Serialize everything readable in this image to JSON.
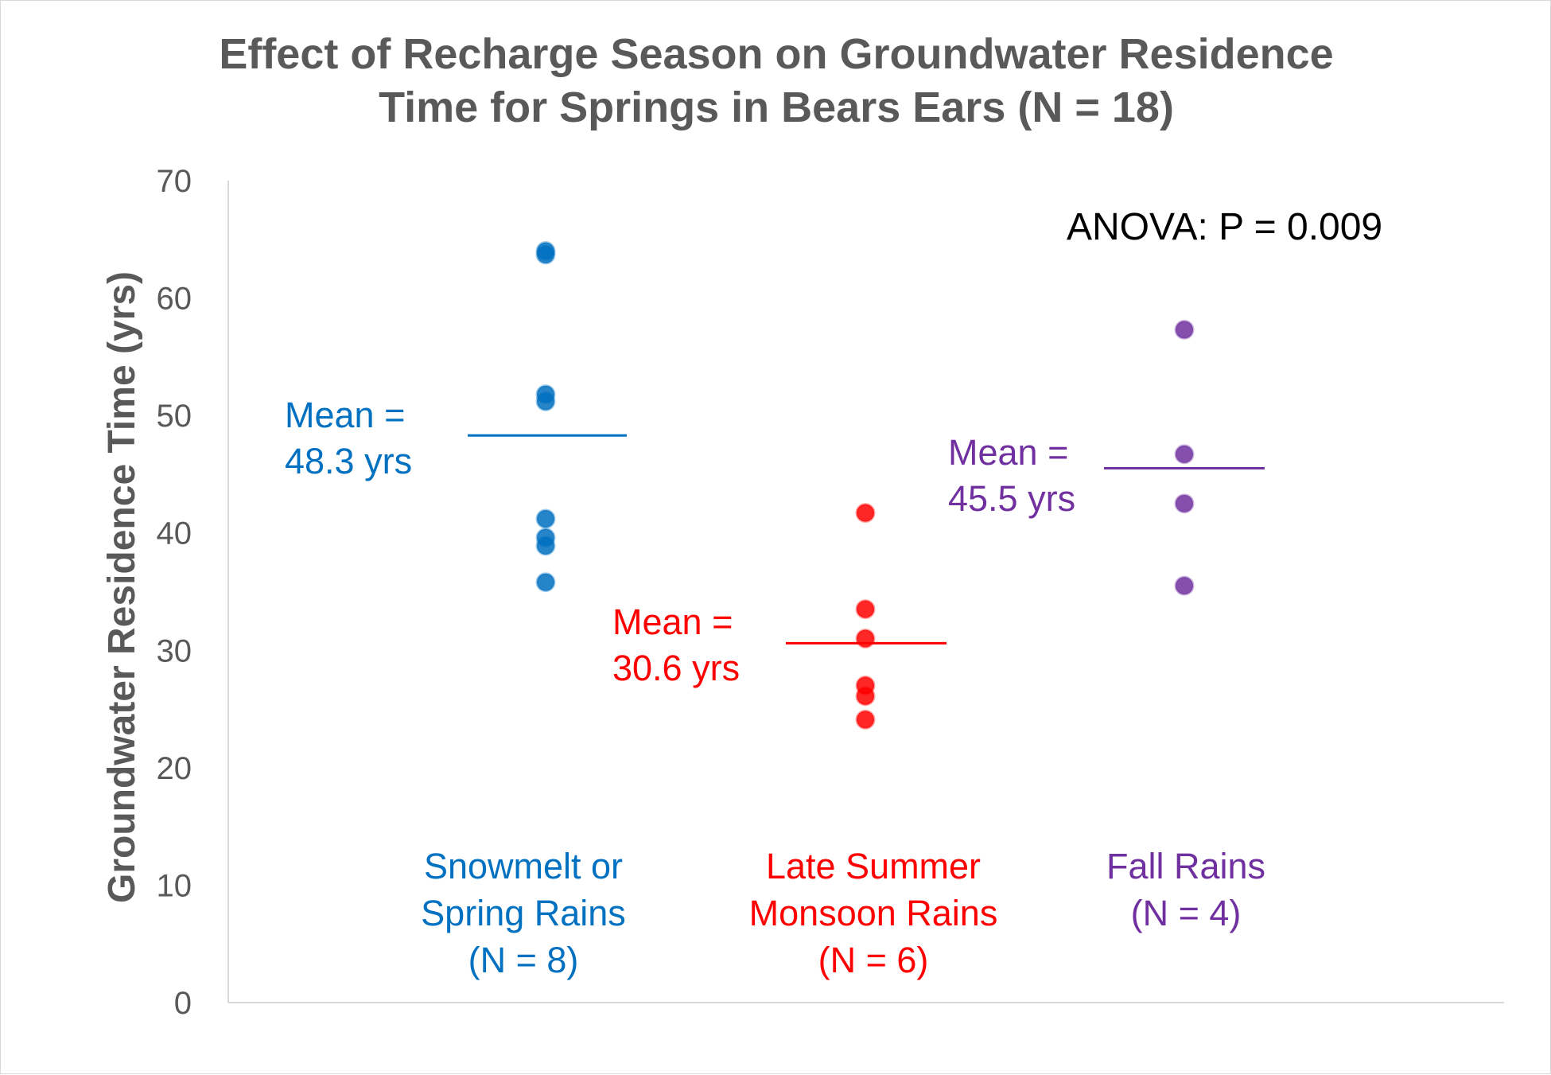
{
  "chart_data": {
    "type": "scatter",
    "title_lines": [
      "Effect of Recharge Season on Groundwater Residence",
      "Time for Springs in Bears Ears (N = 18)"
    ],
    "ylabel": "Groundwater Residence Time (yrs)",
    "xlabel": "",
    "ylim": [
      0,
      70
    ],
    "yticks": [
      "0",
      "10",
      "20",
      "30",
      "40",
      "50",
      "60",
      "70"
    ],
    "grid": false,
    "annotation": "ANOVA: P = 0.009",
    "groups": [
      {
        "label_lines": [
          "Snowmelt or",
          "Spring Rains",
          "(N = 8)"
        ],
        "color": "#0070c0",
        "values": [
          64.0,
          63.7,
          51.8,
          51.2,
          41.2,
          39.6,
          38.9,
          35.8
        ],
        "mean": 48.3,
        "mean_label_lines": [
          "Mean =",
          "48.3 yrs"
        ]
      },
      {
        "label_lines": [
          "Late Summer",
          "Monsoon Rains",
          "(N = 6)"
        ],
        "color": "#ff0000",
        "values": [
          41.7,
          33.5,
          31.0,
          27.0,
          26.1,
          24.1
        ],
        "mean": 30.6,
        "mean_label_lines": [
          "Mean =",
          "30.6 yrs"
        ]
      },
      {
        "label_lines": [
          "Fall Rains",
          "(N = 4)"
        ],
        "color": "#7030a0",
        "values": [
          57.3,
          46.7,
          42.5,
          35.5
        ],
        "mean": 45.5,
        "mean_label_lines": [
          "Mean =",
          "45.5 yrs"
        ]
      }
    ]
  }
}
